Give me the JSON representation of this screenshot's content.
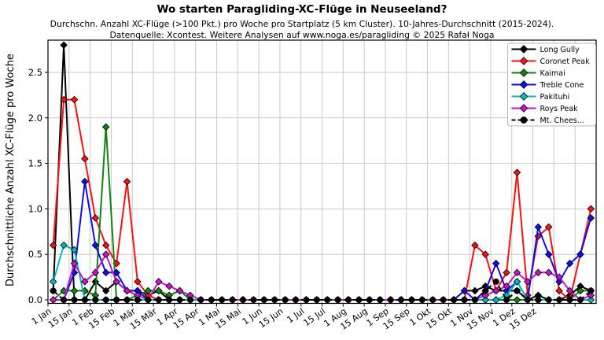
{
  "header": {
    "title": "Wo starten Paragliding-XC-Flüge in Neuseeland?",
    "subtitle_line1": "Durchschn. Anzahl XC-Flüge (>100 Pkt.) pro Woche pro Startplatz (5 km Cluster). 10-Jahres-Durchschnitt (2015-2024).",
    "subtitle_line2": "Datenquelle: Xcontest. Weitere Analysen auf www.noga.es/paragliding © 2025 Rafał Noga"
  },
  "chart_data": {
    "type": "line",
    "title": "Wo starten Paragliding-XC-Flüge in Neuseeland?",
    "xlabel": "",
    "ylabel": "Durchschnittliche Anzahl XC-Flüge pro Woche",
    "x_tick_labels": [
      "1 Jan",
      "15 Jan",
      "1 Feb",
      "15 Feb",
      "1 Mär",
      "15 Mär",
      "1 Apr",
      "15 Apr",
      "1 Mai",
      "15 Mai",
      "1 Jun",
      "15 Jun",
      "1 Jul",
      "15 Jul",
      "1 Aug",
      "15 Aug",
      "1 Sep",
      "15 Sep",
      "1 Okt",
      "15 Okt",
      "1 Nov",
      "15 Nov",
      "1 Dez",
      "15 Dez"
    ],
    "y_ticks": [
      0.0,
      0.5,
      1.0,
      1.5,
      2.0,
      2.5
    ],
    "ylim": [
      -0.04,
      2.86
    ],
    "weeks": 52,
    "grid": true,
    "grid_color": "#c9c9c9",
    "legend_position": "upper right",
    "series": [
      {
        "name": "Long Gully",
        "color": "#000000",
        "marker": "diamond",
        "dash": null,
        "values": [
          0.1,
          2.8,
          0,
          0,
          0.2,
          0.1,
          0.2,
          0.1,
          0.1,
          0.05,
          0.1,
          0,
          0,
          0,
          0,
          0,
          0,
          0,
          0,
          0,
          0,
          0,
          0,
          0,
          0,
          0,
          0,
          0,
          0,
          0,
          0,
          0,
          0,
          0,
          0,
          0,
          0,
          0,
          0,
          0.1,
          0.1,
          0.15,
          0.1,
          0.1,
          0.1,
          0,
          0.05,
          0,
          0,
          0.05,
          0.15,
          0.1
        ]
      },
      {
        "name": "Coronet Peak",
        "color": "#fb0f0f",
        "marker": "diamond",
        "dash": null,
        "values": [
          0.6,
          2.2,
          2.2,
          1.55,
          0.9,
          0.6,
          0.4,
          1.3,
          0.2,
          0.05,
          0,
          0,
          0,
          0,
          0,
          0,
          0,
          0,
          0,
          0,
          0,
          0,
          0,
          0,
          0,
          0,
          0,
          0,
          0,
          0,
          0,
          0,
          0,
          0,
          0,
          0,
          0,
          0,
          0,
          0,
          0.6,
          0.5,
          0.1,
          0.3,
          1.4,
          0.05,
          0.7,
          0.8,
          0.1,
          0,
          0.5,
          1.0
        ]
      },
      {
        "name": "Kaimai",
        "color": "#12830f",
        "marker": "diamond",
        "dash": null,
        "values": [
          0,
          0.1,
          0.1,
          0.1,
          0.05,
          1.9,
          0,
          0,
          0.05,
          0.1,
          0.1,
          0.05,
          0.1,
          0,
          0,
          0,
          0,
          0,
          0,
          0,
          0,
          0,
          0,
          0,
          0,
          0,
          0,
          0,
          0,
          0,
          0,
          0,
          0,
          0,
          0,
          0,
          0,
          0,
          0,
          0,
          0,
          0,
          0,
          0,
          0,
          0,
          0,
          0,
          0,
          0,
          0.1,
          0.1
        ]
      },
      {
        "name": "Treble Cone",
        "color": "#0d0df2",
        "marker": "diamond",
        "dash": null,
        "values": [
          0,
          0,
          0.3,
          1.3,
          0.6,
          0.3,
          0.3,
          0.1,
          0.1,
          0,
          0,
          0,
          0,
          0,
          0,
          0,
          0,
          0,
          0,
          0,
          0,
          0,
          0,
          0,
          0,
          0,
          0,
          0,
          0,
          0,
          0,
          0,
          0,
          0,
          0,
          0,
          0,
          0,
          0,
          0.1,
          0,
          0.1,
          0.4,
          0.1,
          0.2,
          0,
          0.8,
          0.5,
          0.2,
          0.4,
          0.5,
          0.9
        ]
      },
      {
        "name": "Pakituhi",
        "color": "#00bdbd",
        "marker": "diamond",
        "dash": null,
        "values": [
          0.2,
          0.6,
          0.55,
          0,
          0,
          0,
          0,
          0,
          0,
          0,
          0,
          0,
          0,
          0,
          0,
          0,
          0,
          0,
          0,
          0,
          0,
          0,
          0,
          0,
          0,
          0,
          0,
          0,
          0,
          0,
          0,
          0,
          0,
          0,
          0,
          0,
          0,
          0,
          0,
          0,
          0,
          0,
          0,
          0.05,
          0.2,
          0,
          0,
          0,
          0,
          0,
          0,
          0
        ]
      },
      {
        "name": "Roys Peak",
        "color": "#c614c6",
        "marker": "diamond",
        "dash": null,
        "values": [
          0,
          0,
          0.4,
          0.2,
          0.3,
          0.5,
          0.2,
          0.1,
          0.05,
          0,
          0.2,
          0.15,
          0.1,
          0.05,
          0,
          0,
          0,
          0,
          0,
          0,
          0,
          0,
          0,
          0,
          0,
          0,
          0,
          0,
          0,
          0,
          0,
          0,
          0,
          0,
          0,
          0,
          0,
          0,
          0,
          0,
          0,
          0.05,
          0.1,
          0.15,
          0.3,
          0.2,
          0.3,
          0.3,
          0.25,
          0.1,
          0,
          0.05
        ]
      },
      {
        "name": "Mt. Chees...",
        "color": "#000000",
        "marker": "circle",
        "dash": [
          7,
          4
        ],
        "values": [
          0.1,
          0,
          0,
          0,
          0,
          0,
          0,
          0,
          0,
          0,
          0,
          0,
          0,
          0,
          0,
          0,
          0,
          0,
          0,
          0,
          0,
          0,
          0,
          0,
          0,
          0,
          0,
          0,
          0,
          0,
          0,
          0,
          0,
          0,
          0,
          0,
          0,
          0,
          0,
          0,
          0,
          0.1,
          0.2,
          0,
          0.1,
          0,
          0,
          0,
          0,
          0,
          0,
          0.1
        ]
      }
    ]
  }
}
